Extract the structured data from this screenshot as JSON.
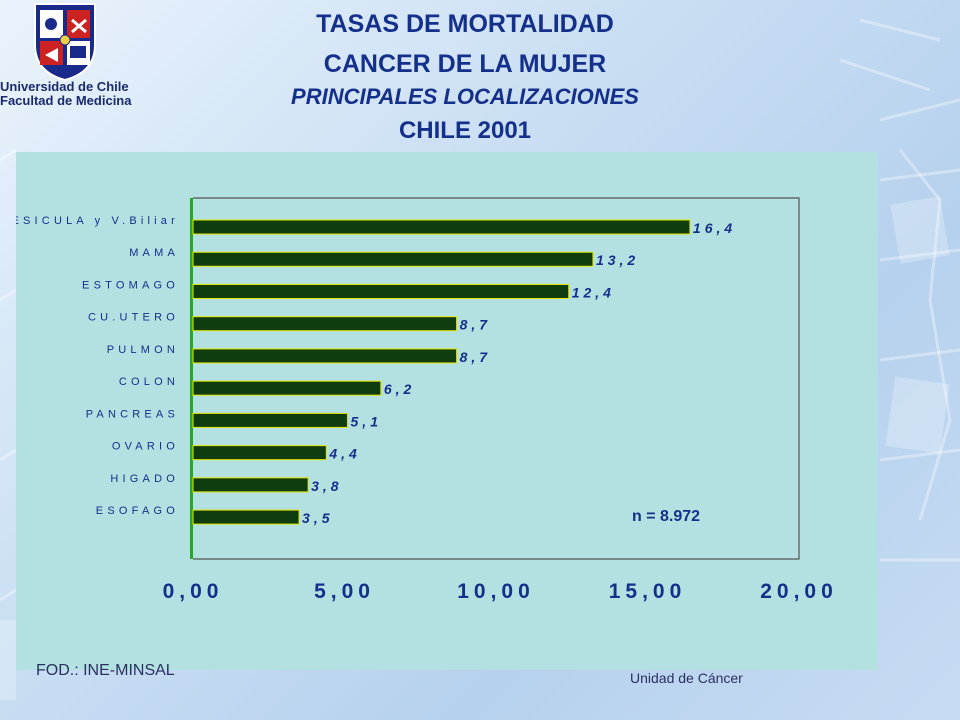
{
  "header": {
    "title_line1": "TASAS DE MORTALIDAD",
    "title_line2": "CANCER DE LA MUJER",
    "title_line3": "PRINCIPALES LOCALIZACIONES",
    "title_line4": "CHILE   2001"
  },
  "logo": {
    "line1": "Universidad de Chile",
    "line2": "Facultad de Medicina"
  },
  "footer": {
    "source": "FOD.: INE-MINSAL",
    "unit": "Unidad de Cáncer"
  },
  "colors": {
    "bar_fill": "#0f3d0f",
    "bar_edge": "#e6e600",
    "axis_y": "#22aa22",
    "plot_bg": "#b3e0e0",
    "title": "#14308a"
  },
  "chart_data": {
    "type": "bar",
    "orientation": "horizontal",
    "categories": [
      "VESICULA y V.Biliar",
      "MAMA",
      "ESTOMAGO",
      "CU.UTERO",
      "PULMON",
      "COLON",
      "PANCREAS",
      "OVARIO",
      "HIGADO",
      "ESOFAGO"
    ],
    "values": [
      16.4,
      13.2,
      12.4,
      8.7,
      8.7,
      6.2,
      5.1,
      4.4,
      3.8,
      3.5
    ],
    "value_labels": [
      "16,4",
      "13,2",
      "12,4",
      "8,7",
      "8,7",
      "6,2",
      "5,1",
      "4,4",
      "3,8",
      "3,5"
    ],
    "xlim": [
      0,
      20
    ],
    "x_ticks": [
      "0,00",
      "5,00",
      "10,00",
      "15,00",
      "20,00"
    ],
    "x_tick_values": [
      0,
      5,
      10,
      15,
      20
    ],
    "annotation": "n = 8.972",
    "grid": false
  }
}
